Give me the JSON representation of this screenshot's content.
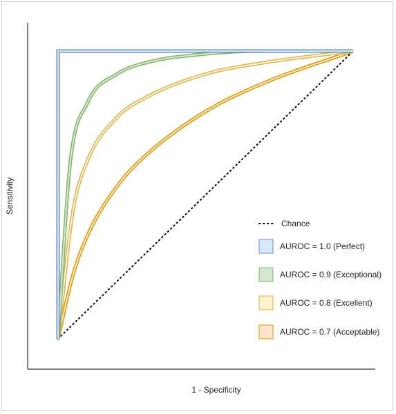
{
  "chart_data": {
    "type": "line",
    "title": "",
    "xlabel": "1 - Specificity",
    "ylabel": "Sensitivity",
    "xlim": [
      0,
      1
    ],
    "ylim": [
      0,
      1
    ],
    "grid": false,
    "legend_position": "bottom-right",
    "series": [
      {
        "name": "Chance",
        "style": "dotted",
        "color": "#000000",
        "x": [
          0,
          1
        ],
        "y": [
          0,
          1
        ]
      },
      {
        "name": "AUROC = 1.0 (Perfect)",
        "color": "#6c8ebf",
        "fill": "#dae8fc",
        "x": [
          0,
          0,
          1
        ],
        "y": [
          0,
          1,
          1
        ]
      },
      {
        "name": "AUROC = 0.9 (Exceptional)",
        "color": "#82b366",
        "fill": "#d5e8d4",
        "x": [
          0,
          0.04,
          0.1,
          0.2,
          0.3,
          0.5,
          0.7,
          1
        ],
        "y": [
          0,
          0.6,
          0.82,
          0.92,
          0.96,
          0.99,
          1,
          1
        ]
      },
      {
        "name": "AUROC = 0.8 (Excellent)",
        "color": "#d6b656",
        "fill": "#fff2cc",
        "x": [
          0,
          0.05,
          0.1,
          0.2,
          0.3,
          0.5,
          0.7,
          1
        ],
        "y": [
          0,
          0.44,
          0.62,
          0.77,
          0.84,
          0.92,
          0.96,
          1
        ]
      },
      {
        "name": "AUROC = 0.7 (Acceptable)",
        "color": "#d79b00",
        "fill": "#ffe6cc",
        "x": [
          0,
          0.05,
          0.1,
          0.2,
          0.3,
          0.5,
          0.7,
          1
        ],
        "y": [
          0,
          0.22,
          0.36,
          0.53,
          0.64,
          0.79,
          0.89,
          1
        ]
      }
    ]
  }
}
